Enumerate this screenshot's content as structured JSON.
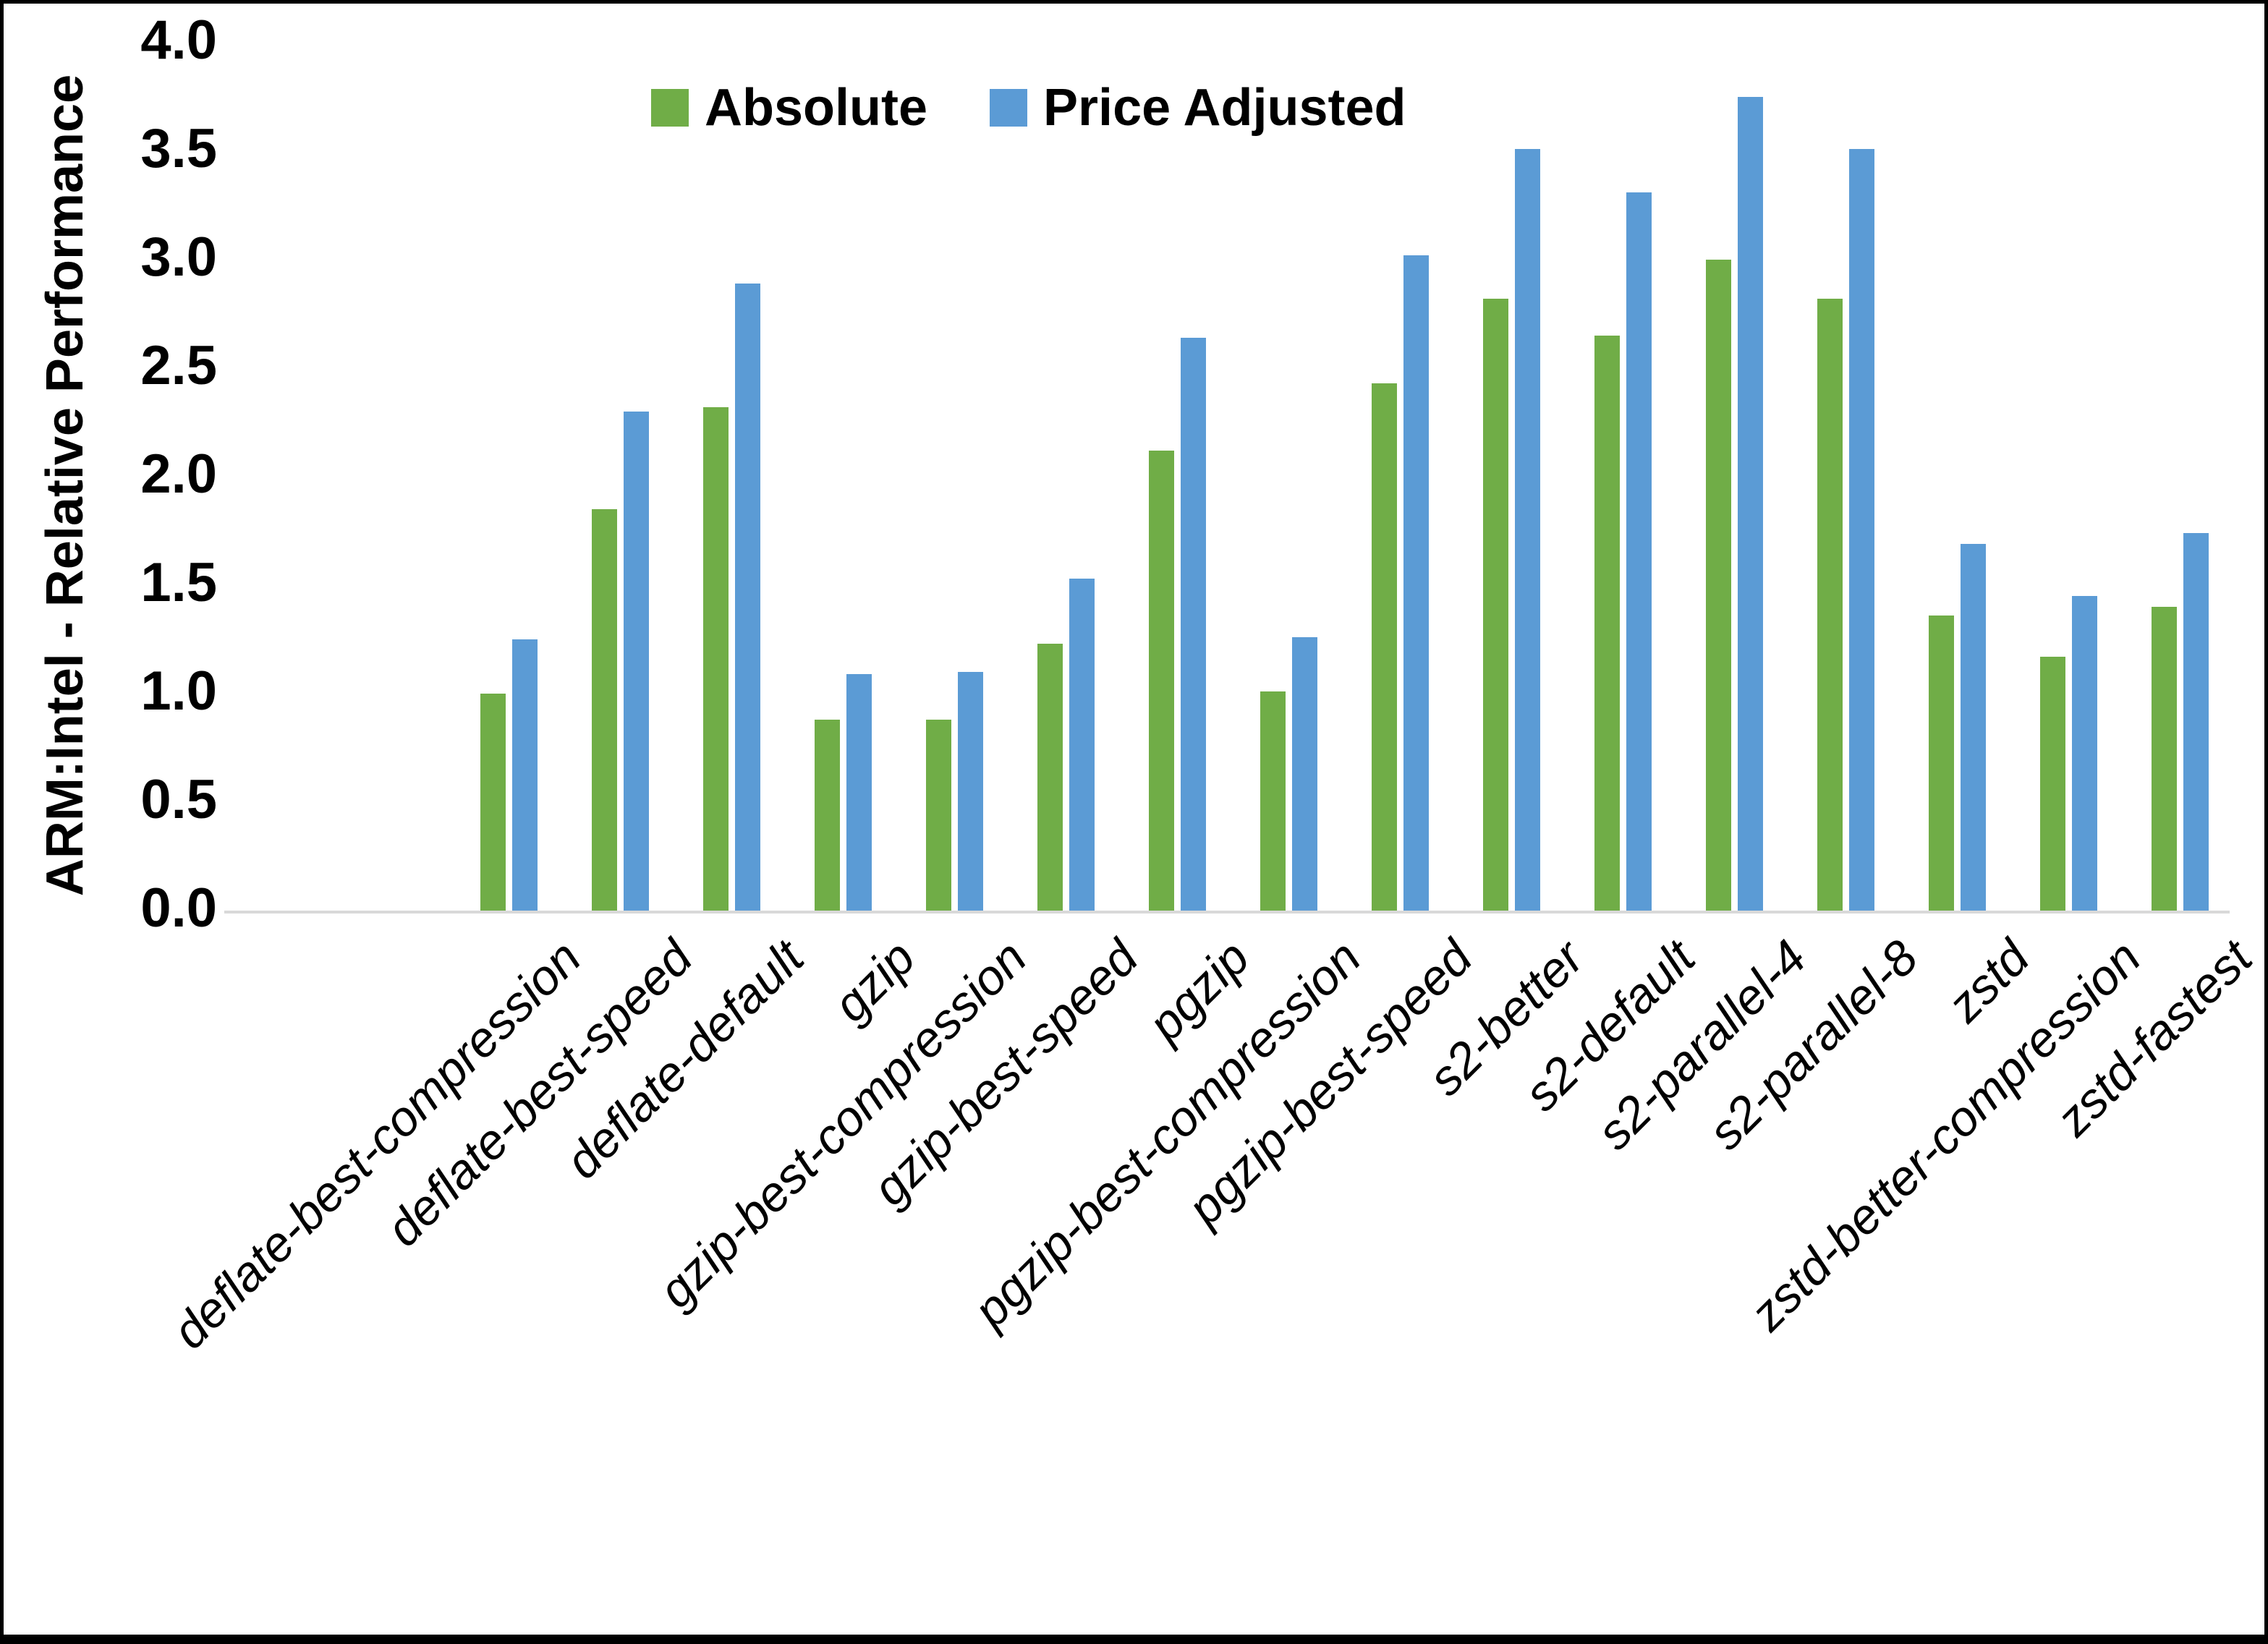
{
  "chart_data": {
    "type": "bar",
    "title": "",
    "xlabel": "",
    "ylabel": "ARM:Intel - Relative Performance",
    "ylim": [
      0.0,
      4.0
    ],
    "y_tick_step": 0.5,
    "y_ticks": [
      "0.0",
      "0.5",
      "1.0",
      "1.5",
      "2.0",
      "2.5",
      "3.0",
      "3.5",
      "4.0"
    ],
    "grid": false,
    "legend_position": "top-center",
    "categories": [
      "deflate-best-compression",
      "deflate-best-speed",
      "deflate-default",
      "gzip",
      "gzip-best-compression",
      "gzip-best-speed",
      "pgzip",
      "pgzip-best-compression",
      "pgzip-best-speed",
      "s2-better",
      "s2-default",
      "s2-parallel-4",
      "s2-parallel-8",
      "zstd",
      "zstd-better-compression",
      "zstd-fastest"
    ],
    "series": [
      {
        "name": "Absolute",
        "color": "#70AD47",
        "values": [
          1.0,
          1.85,
          2.32,
          0.88,
          0.88,
          1.23,
          2.12,
          1.01,
          2.43,
          2.82,
          2.65,
          3.0,
          2.82,
          1.36,
          1.17,
          1.4
        ]
      },
      {
        "name": "Price Adjusted",
        "color": "#5B9BD5",
        "values": [
          1.25,
          2.3,
          2.89,
          1.09,
          1.1,
          1.53,
          2.64,
          1.26,
          3.02,
          3.51,
          3.31,
          3.75,
          3.51,
          1.69,
          1.45,
          1.74
        ]
      }
    ],
    "colors": {
      "axis_line": "#D9D9D9",
      "text": "#000000",
      "background": "#FFFFFF",
      "frame_border": "#000000"
    }
  }
}
